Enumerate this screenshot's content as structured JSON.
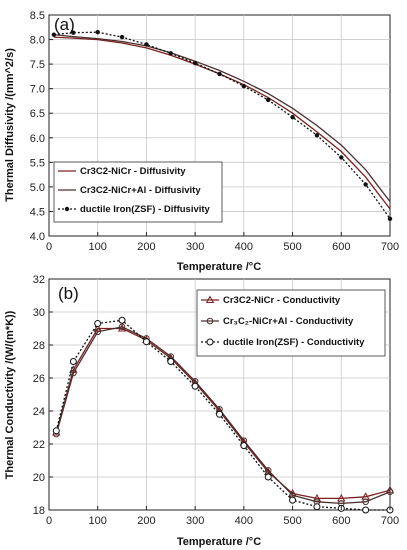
{
  "chart_data": [
    {
      "panel_label": "(a)",
      "type": "line",
      "xlabel": "Temperature /°C",
      "ylabel": "Thermal Diffusivity /(mm^2/s)",
      "xlim": [
        0,
        700
      ],
      "ylim": [
        4.0,
        8.5
      ],
      "xticks": [
        "0",
        "100",
        "200",
        "300",
        "400",
        "500",
        "600",
        "700"
      ],
      "yticks": [
        "4.0",
        "4.5",
        "5.0",
        "5.5",
        "6.0",
        "6.5",
        "7.0",
        "7.5",
        "8.0",
        "8.5"
      ],
      "grid": true,
      "legend_position": "bottom-left",
      "series": [
        {
          "name": "Cr3C2-NiCr  - Diffusivity",
          "style": "solid",
          "marker": "none",
          "color": "#7a2020",
          "x": [
            10,
            50,
            100,
            150,
            200,
            250,
            300,
            350,
            400,
            450,
            500,
            550,
            600,
            650,
            700
          ],
          "y": [
            8.05,
            8.03,
            8.0,
            7.93,
            7.83,
            7.68,
            7.5,
            7.3,
            7.08,
            6.82,
            6.5,
            6.12,
            5.72,
            5.2,
            4.55
          ]
        },
        {
          "name": "Cr3C2-NiCr+Al  - Diffusivity",
          "style": "solid",
          "marker": "none",
          "color": "#4a3030",
          "x": [
            10,
            50,
            100,
            150,
            200,
            250,
            300,
            350,
            400,
            450,
            500,
            550,
            600,
            650,
            700
          ],
          "y": [
            8.1,
            8.06,
            8.02,
            7.96,
            7.87,
            7.73,
            7.56,
            7.37,
            7.15,
            6.9,
            6.6,
            6.25,
            5.85,
            5.35,
            4.7
          ]
        },
        {
          "name": "ductile Iron(ZSF) - Diffusivity",
          "style": "dotted",
          "marker": "dot",
          "color": "#111111",
          "x": [
            10,
            50,
            100,
            150,
            200,
            250,
            300,
            350,
            400,
            450,
            500,
            550,
            600,
            650,
            700
          ],
          "y": [
            8.1,
            8.14,
            8.15,
            8.05,
            7.9,
            7.72,
            7.52,
            7.3,
            7.05,
            6.77,
            6.42,
            6.05,
            5.6,
            5.05,
            4.35
          ]
        }
      ]
    },
    {
      "panel_label": "(b)",
      "type": "line",
      "xlabel": "Temperature /°C",
      "ylabel": "Thermal Conductivity /(W/(m*K))",
      "xlim": [
        0,
        700
      ],
      "ylim": [
        18,
        32
      ],
      "xticks": [
        "0",
        "100",
        "200",
        "300",
        "400",
        "500",
        "600",
        "700"
      ],
      "yticks": [
        "18",
        "20",
        "22",
        "24",
        "26",
        "28",
        "30",
        "32"
      ],
      "grid": true,
      "legend_position": "top-right",
      "series": [
        {
          "name": "Cr3C2-NiCr   - Conductivity",
          "style": "solid",
          "marker": "triangle",
          "color": "#7a2020",
          "x": [
            15,
            50,
            100,
            150,
            200,
            250,
            300,
            350,
            400,
            450,
            500,
            550,
            600,
            650,
            700
          ],
          "y": [
            22.7,
            26.5,
            29.0,
            29.0,
            28.3,
            27.2,
            25.7,
            24.0,
            22.1,
            20.3,
            19.0,
            18.7,
            18.7,
            18.8,
            19.2
          ]
        },
        {
          "name": "Cr₃C₂-NiCr+Al   - Conductivity",
          "style": "solid",
          "marker": "circle",
          "color": "#4a3030",
          "x": [
            15,
            50,
            100,
            150,
            200,
            250,
            300,
            350,
            400,
            450,
            500,
            550,
            600,
            650,
            700
          ],
          "y": [
            22.6,
            26.3,
            28.8,
            29.1,
            28.4,
            27.3,
            25.8,
            24.1,
            22.2,
            20.4,
            18.9,
            18.5,
            18.4,
            18.5,
            19.1
          ]
        },
        {
          "name": "ductile Iron(ZSF) - Conductivity",
          "style": "dotted",
          "marker": "circle-open",
          "color": "#111111",
          "x": [
            15,
            50,
            100,
            150,
            200,
            250,
            300,
            350,
            400,
            450,
            500,
            550,
            600,
            650,
            700
          ],
          "y": [
            22.8,
            27.0,
            29.3,
            29.5,
            28.2,
            27.0,
            25.5,
            23.8,
            21.9,
            20.0,
            18.6,
            18.2,
            18.1,
            18.0,
            18.0
          ]
        }
      ]
    }
  ]
}
